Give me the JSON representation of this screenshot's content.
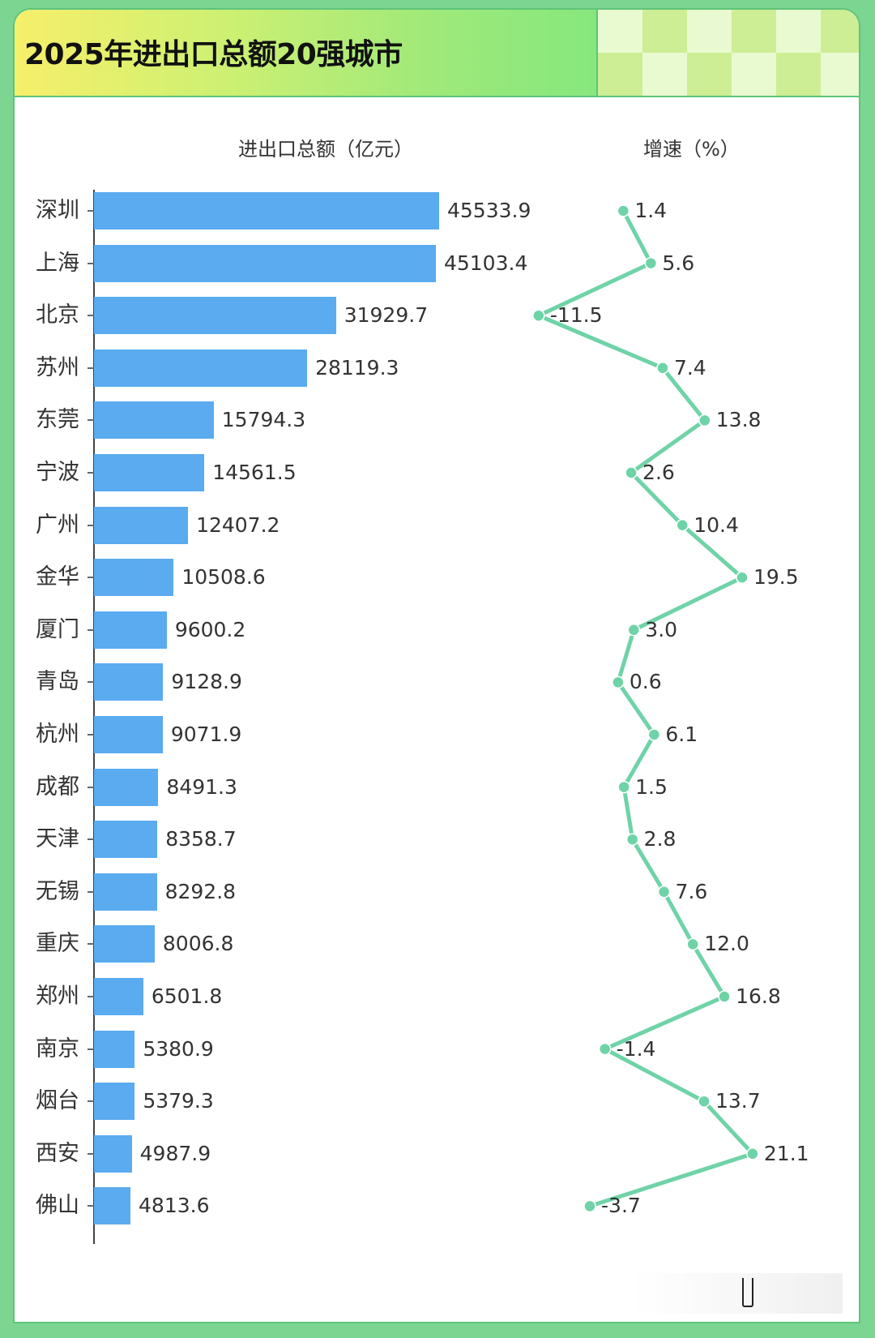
{
  "header": {
    "title": "2025年进出口总额20强城市"
  },
  "columns": {
    "left_title": "进出口总额（亿元）",
    "right_title": "增速（%）"
  },
  "colors": {
    "bar": "#5aabef",
    "line": "#6fd3a8",
    "background": "#7dd592"
  },
  "chart_data": [
    {
      "type": "bar",
      "orientation": "horizontal",
      "title": "进出口总额（亿元）",
      "xlabel": "",
      "ylabel": "",
      "categories": [
        "深圳",
        "上海",
        "北京",
        "苏州",
        "东莞",
        "宁波",
        "广州",
        "金华",
        "厦门",
        "青岛",
        "杭州",
        "成都",
        "天津",
        "无锡",
        "重庆",
        "郑州",
        "南京",
        "烟台",
        "西安",
        "佛山"
      ],
      "values": [
        45533.9,
        45103.4,
        31929.7,
        28119.3,
        15794.3,
        14561.5,
        12407.2,
        10508.6,
        9600.2,
        9128.9,
        9071.9,
        8491.3,
        8358.7,
        8292.8,
        8006.8,
        6501.8,
        5380.9,
        5379.3,
        4987.9,
        4813.6
      ],
      "grid": false,
      "data_labels": true
    },
    {
      "type": "line",
      "orientation": "vertical",
      "title": "增速（%）",
      "categories": [
        "深圳",
        "上海",
        "北京",
        "苏州",
        "东莞",
        "宁波",
        "广州",
        "金华",
        "厦门",
        "青岛",
        "杭州",
        "成都",
        "天津",
        "无锡",
        "重庆",
        "郑州",
        "南京",
        "烟台",
        "西安",
        "佛山"
      ],
      "values": [
        1.4,
        5.6,
        -11.5,
        7.4,
        13.8,
        2.6,
        10.4,
        19.5,
        3.0,
        0.6,
        6.1,
        1.5,
        2.8,
        7.6,
        12.0,
        16.8,
        -1.4,
        13.7,
        21.1,
        -3.7
      ],
      "grid": false,
      "data_labels": true
    }
  ],
  "rows": [
    {
      "city": "深圳",
      "amount": "45533.9",
      "growth": "1.4"
    },
    {
      "city": "上海",
      "amount": "45103.4",
      "growth": "5.6"
    },
    {
      "city": "北京",
      "amount": "31929.7",
      "growth": "-11.5"
    },
    {
      "city": "苏州",
      "amount": "28119.3",
      "growth": "7.4"
    },
    {
      "city": "东莞",
      "amount": "15794.3",
      "growth": "13.8"
    },
    {
      "city": "宁波",
      "amount": "14561.5",
      "growth": "2.6"
    },
    {
      "city": "广州",
      "amount": "12407.2",
      "growth": "10.4"
    },
    {
      "city": "金华",
      "amount": "10508.6",
      "growth": "19.5"
    },
    {
      "city": "厦门",
      "amount": "9600.2",
      "growth": "3.0"
    },
    {
      "city": "青岛",
      "amount": "9128.9",
      "growth": "0.6"
    },
    {
      "city": "杭州",
      "amount": "9071.9",
      "growth": "6.1"
    },
    {
      "city": "成都",
      "amount": "8491.3",
      "growth": "1.5"
    },
    {
      "city": "天津",
      "amount": "8358.7",
      "growth": "2.8"
    },
    {
      "city": "无锡",
      "amount": "8292.8",
      "growth": "7.6"
    },
    {
      "city": "重庆",
      "amount": "8006.8",
      "growth": "12.0"
    },
    {
      "city": "郑州",
      "amount": "6501.8",
      "growth": "16.8"
    },
    {
      "city": "南京",
      "amount": "5380.9",
      "growth": "-1.4"
    },
    {
      "city": "烟台",
      "amount": "5379.3",
      "growth": "13.7"
    },
    {
      "city": "西安",
      "amount": "4987.9",
      "growth": "21.1"
    },
    {
      "city": "佛山",
      "amount": "4813.6",
      "growth": "-3.7"
    }
  ]
}
